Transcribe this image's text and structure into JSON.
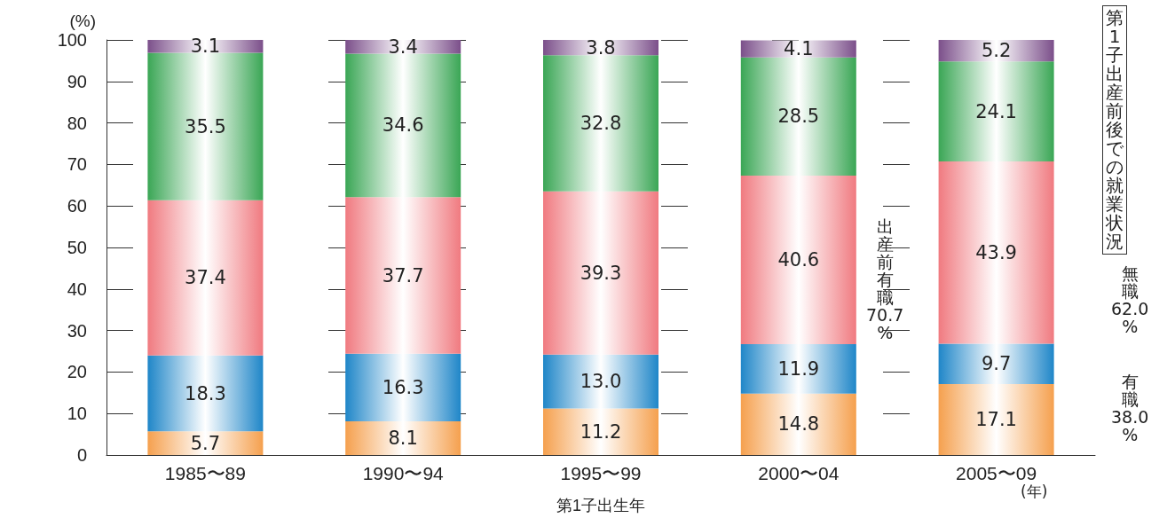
{
  "chart_data": {
    "type": "bar",
    "stacked": true,
    "grid": "y",
    "categories": [
      "1985〜89",
      "1990〜94",
      "1995〜99",
      "2000〜04",
      "2005〜09"
    ],
    "series": [
      {
        "color": "#f5a04e",
        "values": [
          5.7,
          8.1,
          11.2,
          14.8,
          17.1
        ],
        "value_labels": [
          "5.7",
          "8.1",
          "11.2",
          "14.8",
          "17.1"
        ]
      },
      {
        "color": "#1f86c8",
        "values": [
          18.3,
          16.3,
          13.0,
          11.9,
          9.7
        ],
        "value_labels": [
          "18.3",
          "16.3",
          "13.0",
          "11.9",
          "9.7"
        ]
      },
      {
        "color": "#f07a80",
        "values": [
          37.4,
          37.7,
          39.3,
          40.6,
          43.9
        ],
        "value_labels": [
          "37.4",
          "37.7",
          "39.3",
          "40.6",
          "43.9"
        ]
      },
      {
        "color": "#3aa655",
        "values": [
          35.5,
          34.6,
          32.8,
          28.5,
          24.1
        ],
        "value_labels": [
          "35.5",
          "34.6",
          "32.8",
          "28.5",
          "24.1"
        ]
      },
      {
        "color": "#7b4f8a",
        "values": [
          3.1,
          3.4,
          3.8,
          4.1,
          5.2
        ],
        "value_labels": [
          "3.1",
          "3.4",
          "3.8",
          "4.1",
          "5.2"
        ]
      }
    ],
    "ylim": [
      0,
      100
    ],
    "yticks": [
      0,
      10,
      20,
      30,
      40,
      50,
      60,
      70,
      80,
      90,
      100
    ],
    "ylabel": "(%)",
    "xlabel": "第1子出生年",
    "annotations": [
      "(年)",
      "第1子出産前後での就業状況",
      "出産前有職70.7%",
      "無職62.0%",
      "有職38.0%"
    ]
  }
}
